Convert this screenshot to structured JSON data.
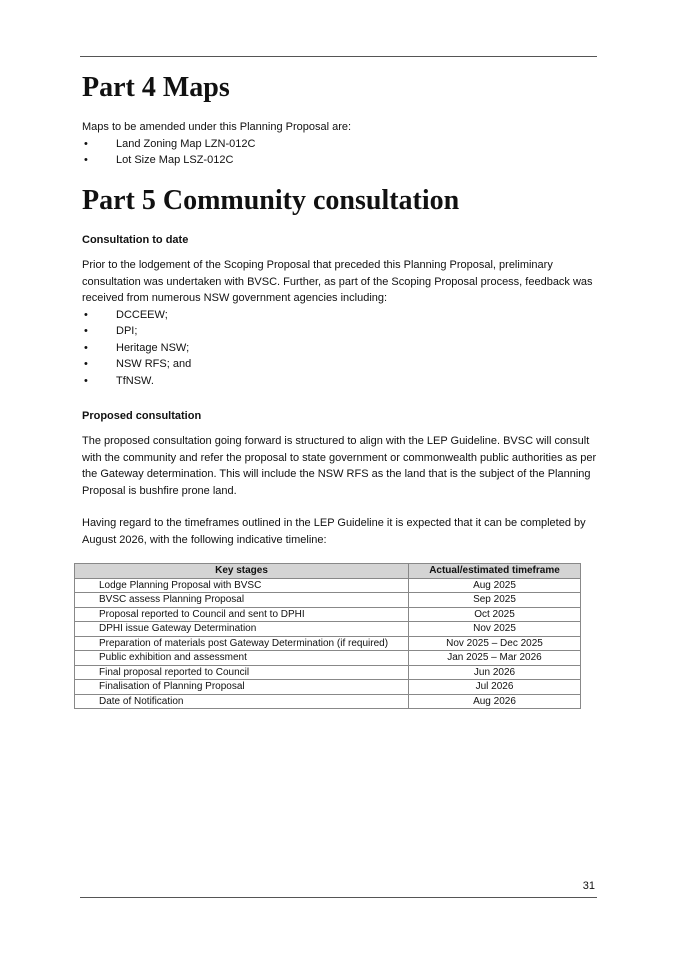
{
  "part4": {
    "title": "Part 4 Maps",
    "intro": "Maps to be amended under this Planning Proposal are:",
    "maps": [
      "Land Zoning Map LZN-012C",
      "Lot Size Map LSZ-012C"
    ]
  },
  "part5": {
    "title": "Part 5 Community consultation",
    "to_date_heading": "Consultation to date",
    "to_date_para": "Prior to the lodgement of the Scoping Proposal that preceded this Planning Proposal, preliminary consultation was undertaken with BVSC. Further, as part of the Scoping Proposal process, feedback was received from numerous NSW government agencies including:",
    "agencies": [
      "DCCEEW;",
      "DPI;",
      "Heritage NSW;",
      "NSW RFS; and",
      "TfNSW."
    ],
    "proposed_heading": "Proposed consultation",
    "proposed_para": "The proposed consultation going forward is structured to align with the LEP Guideline. BVSC will consult with the community and refer the proposal to state government or commonwealth public authorities as per the Gateway determination.  This will include the NSW RFS as the land that is the subject of the Planning Proposal is bushfire prone land.",
    "timeframe_para": "Having regard to the timeframes outlined in the LEP Guideline it is expected that it can be completed by August 2026, with the following indicative timeline:",
    "table": {
      "headers": [
        "Key stages",
        "Actual/estimated timeframe"
      ],
      "rows": [
        [
          "Lodge Planning Proposal with BVSC",
          "Aug 2025"
        ],
        [
          "BVSC assess Planning Proposal",
          "Sep 2025"
        ],
        [
          "Proposal reported to Council and sent to DPHI",
          "Oct 2025"
        ],
        [
          "DPHI issue Gateway Determination",
          "Nov 2025"
        ],
        [
          "Preparation of materials post Gateway Determination (if required)",
          "Nov 2025 – Dec 2025"
        ],
        [
          "Public exhibition and assessment",
          "Jan 2025 – Mar 2026"
        ],
        [
          "Final proposal reported to Council",
          "Jun 2026"
        ],
        [
          "Finalisation of Planning Proposal",
          "Jul 2026"
        ],
        [
          "Date of Notification",
          "Aug 2026"
        ]
      ]
    }
  },
  "page_number": "31"
}
